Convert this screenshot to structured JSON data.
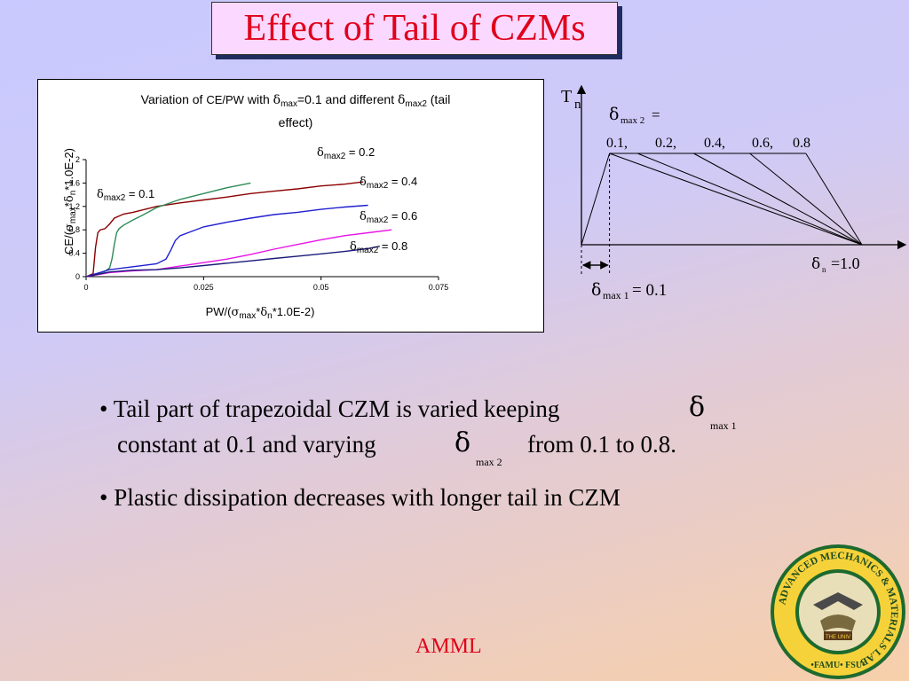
{
  "slide": {
    "title": "Effect of Tail of CZMs",
    "footer": "AMML",
    "bullets": {
      "b1_part1": "Tail part of trapezoidal CZM is varied keeping",
      "b1_sym1": "δ",
      "b1_sub1": "max 1",
      "b1_part2": "constant at 0.1 and varying",
      "b1_sym2": "δ",
      "b1_sub2": "max 2",
      "b1_part3": "from 0.1 to 0.8.",
      "b2": "Plastic dissipation decreases with longer tail in CZM"
    },
    "logo": {
      "ring_text": "ADVANCED MECHANICS & MATERIALS LAB",
      "bottom_text": "•FAMU• FSU•",
      "center_text": "THE UNIV"
    },
    "colors": {
      "title_red": "#e0001b",
      "title_bg": "#fbd8ff",
      "shadow": "#1f2c5e"
    }
  },
  "chart_data": {
    "type": "line",
    "title": {
      "p1": "Variation of ",
      "p2": "CE/PW",
      "p3": " with ",
      "delta": "δ",
      "sub_max": "max",
      "p4": "=0.1 and different ",
      "sub_max2": "max2",
      "p5": " (tail",
      "p6": "effect)"
    },
    "ylabel": {
      "p1": "CE/(",
      "sigma": "σ",
      "sub1": "max",
      "p2": "*",
      "delta": "δ",
      "sub2": "n",
      "p3": "*1.0E-2)"
    },
    "xlabel": {
      "p1": "PW/(",
      "sigma": "σ",
      "sub1": "max",
      "p2": "*",
      "delta": "δ",
      "sub2": "n",
      "p3": "*1.0E-2)"
    },
    "xlim": [
      0,
      0.075
    ],
    "ylim": [
      0,
      2
    ],
    "xticks": [
      "0",
      "0.025",
      "0.05",
      "0.075"
    ],
    "xtick_values": [
      0,
      0.025,
      0.05,
      0.075
    ],
    "yticks": [
      "0",
      "0.4",
      "0.8",
      "1.2",
      "1.6",
      "2"
    ],
    "ytick_values": [
      0,
      0.4,
      0.8,
      1.2,
      1.6,
      2
    ],
    "series": [
      {
        "name": "δmax2 = 0.1",
        "label_delta": "δ",
        "label_sub": "max2",
        "label_val": " = 0.1",
        "color": "#8b0000",
        "x": [
          0.0,
          0.0015,
          0.002,
          0.0025,
          0.003,
          0.004,
          0.005,
          0.006,
          0.008,
          0.01,
          0.015,
          0.02,
          0.025,
          0.03,
          0.035,
          0.04,
          0.045,
          0.05,
          0.055,
          0.059
        ],
        "y": [
          0.0,
          0.05,
          0.5,
          0.75,
          0.8,
          0.82,
          0.9,
          1.0,
          1.07,
          1.1,
          1.2,
          1.26,
          1.31,
          1.36,
          1.42,
          1.46,
          1.5,
          1.55,
          1.58,
          1.62
        ]
      },
      {
        "name": "δmax2 = 0.2",
        "label_delta": "δ",
        "label_sub": "max2",
        "label_val": " = 0.2",
        "color": "#2e8b57",
        "x": [
          0.0,
          0.004,
          0.005,
          0.0055,
          0.006,
          0.0065,
          0.007,
          0.008,
          0.01,
          0.012,
          0.015,
          0.02,
          0.025,
          0.03,
          0.035
        ],
        "y": [
          0.0,
          0.09,
          0.15,
          0.3,
          0.55,
          0.75,
          0.82,
          0.88,
          0.97,
          1.05,
          1.18,
          1.32,
          1.42,
          1.52,
          1.6
        ]
      },
      {
        "name": "δmax2 = 0.4",
        "label_delta": "δ",
        "label_sub": "max2",
        "label_val": " = 0.4",
        "color": "#1f1fd0",
        "x": [
          0.0,
          0.005,
          0.01,
          0.015,
          0.017,
          0.018,
          0.019,
          0.02,
          0.025,
          0.03,
          0.035,
          0.04,
          0.045,
          0.05,
          0.055,
          0.06
        ],
        "y": [
          0.0,
          0.12,
          0.17,
          0.22,
          0.3,
          0.45,
          0.62,
          0.7,
          0.85,
          0.93,
          1.0,
          1.06,
          1.1,
          1.15,
          1.19,
          1.22
        ]
      },
      {
        "name": "δmax2 = 0.6",
        "label_delta": "δ",
        "label_sub": "max2",
        "label_val": " = 0.6",
        "color": "#e614e6",
        "x": [
          0.0,
          0.005,
          0.01,
          0.015,
          0.02,
          0.025,
          0.03,
          0.035,
          0.04,
          0.045,
          0.05,
          0.055,
          0.06,
          0.065
        ],
        "y": [
          0.0,
          0.07,
          0.1,
          0.12,
          0.18,
          0.24,
          0.3,
          0.38,
          0.47,
          0.55,
          0.63,
          0.7,
          0.75,
          0.8
        ]
      },
      {
        "name": "δmax2 = 0.8",
        "label_delta": "δ",
        "label_sub": "max2",
        "label_val": " = 0.8",
        "color": "#1a1a7a",
        "x": [
          0.0,
          0.005,
          0.01,
          0.015,
          0.02,
          0.025,
          0.03,
          0.035,
          0.04,
          0.045,
          0.05,
          0.055,
          0.06,
          0.0625
        ],
        "y": [
          0.0,
          0.08,
          0.11,
          0.12,
          0.15,
          0.19,
          0.23,
          0.27,
          0.31,
          0.35,
          0.39,
          0.43,
          0.48,
          0.52
        ]
      }
    ]
  },
  "schematic": {
    "tn_label": "T",
    "tn_sub": "n",
    "dmax2_label": "δ",
    "dmax2_sub": "max 2",
    "dmax2_eq": " =",
    "tail_values": [
      "0.1,",
      "0.2,",
      "0.4,",
      "0.6,",
      "0.8"
    ],
    "tail_ends": [
      0.1,
      0.2,
      0.4,
      0.6,
      0.8
    ],
    "dn_label": "δ",
    "dn_sub": "n",
    "dn_eq": " =1.0",
    "dmax1_label": "δ",
    "dmax1_sub": "max 1",
    "dmax1_eq": " = 0.1"
  }
}
